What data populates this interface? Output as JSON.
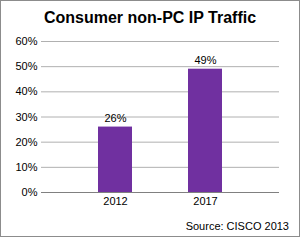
{
  "chart_data": {
    "type": "bar",
    "title": "Consumer non-PC IP Traffic",
    "categories": [
      "2012",
      "2017"
    ],
    "values": [
      26,
      49
    ],
    "value_labels": [
      "26%",
      "49%"
    ],
    "color": "#7030a0",
    "ylim": [
      0,
      60
    ],
    "yticks": [
      {
        "value": 0,
        "label": "0%"
      },
      {
        "value": 10,
        "label": "10%"
      },
      {
        "value": 20,
        "label": "20%"
      },
      {
        "value": 30,
        "label": "30%"
      },
      {
        "value": 40,
        "label": "40%"
      },
      {
        "value": 50,
        "label": "50%"
      },
      {
        "value": 60,
        "label": "60%"
      }
    ],
    "grid": true,
    "data_labels": true,
    "caption": "Source: CISCO 2013"
  }
}
